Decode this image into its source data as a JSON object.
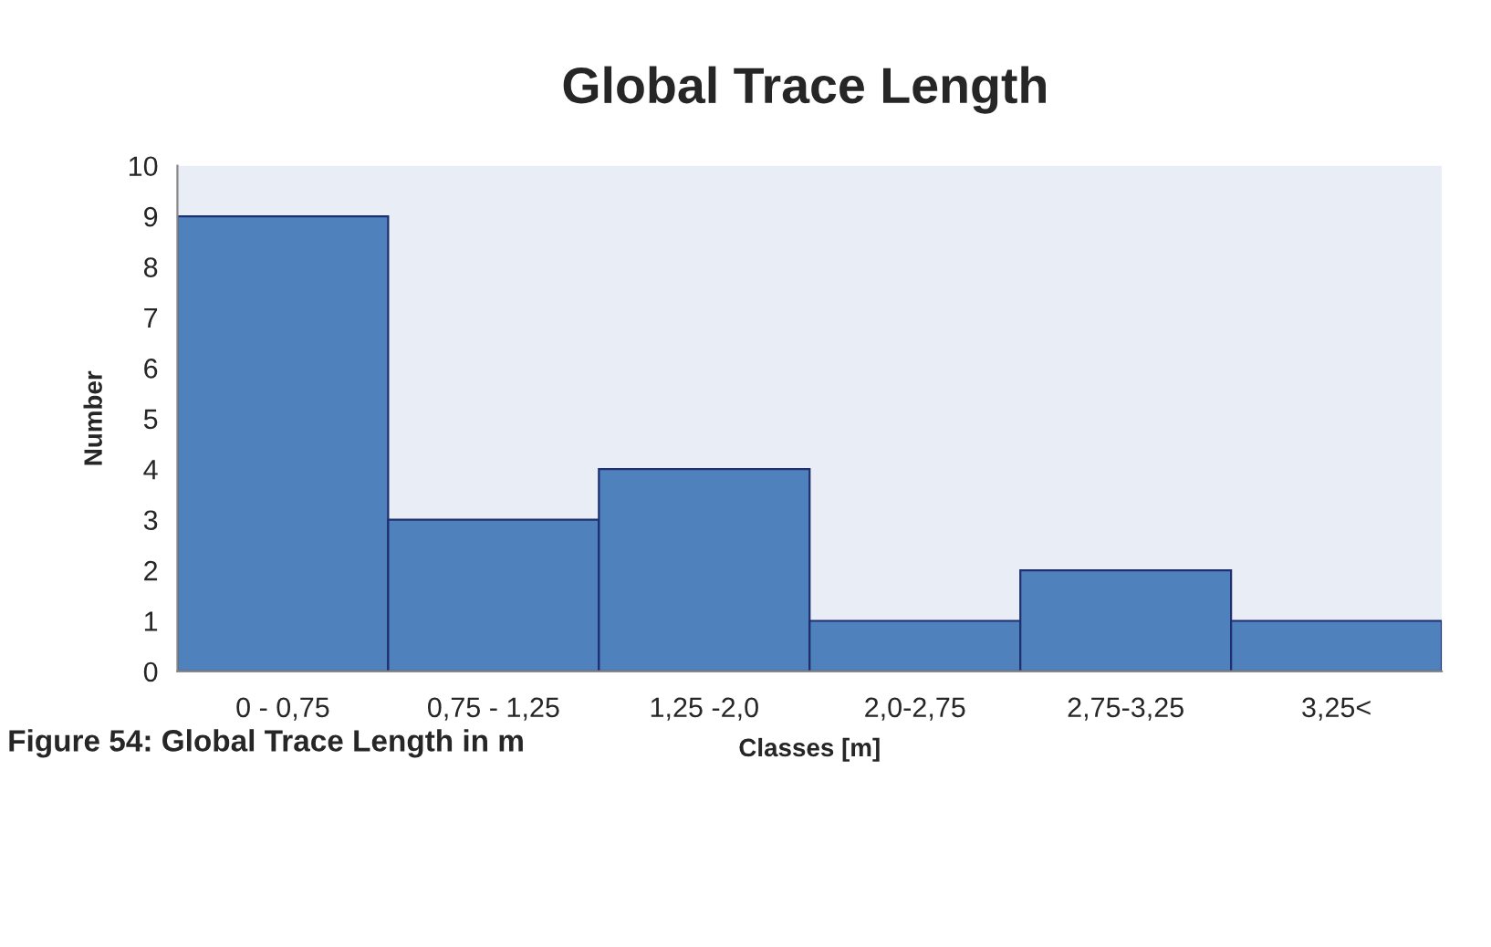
{
  "chart_data": {
    "type": "bar",
    "title": "Global Trace Length",
    "xlabel": "Classes [m]",
    "ylabel": "Number",
    "categories": [
      "0 - 0,75",
      "0,75 - 1,25",
      "1,25 -2,0",
      "2,0-2,75",
      "2,75-3,25",
      "3,25<"
    ],
    "values": [
      9,
      3,
      4,
      1,
      2,
      1
    ],
    "color": "#4f81bd",
    "ylim": [
      0,
      10
    ],
    "yticks": [
      0,
      1,
      2,
      3,
      4,
      5,
      6,
      7,
      8,
      9,
      10
    ],
    "grid": false,
    "annotations": [
      "Figure 54: Global Trace Length in m"
    ]
  }
}
